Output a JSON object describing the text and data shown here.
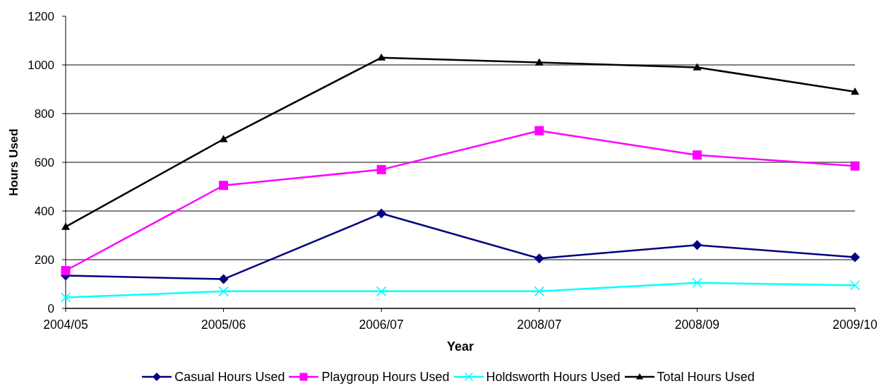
{
  "chart_data": {
    "type": "line",
    "xlabel": "Year",
    "ylabel": "Hours Used",
    "categories": [
      "2004/05",
      "2005/06",
      "2006/07",
      "2008/07",
      "2008/09",
      "2009/10"
    ],
    "series": [
      {
        "name": "Casual Hours Used",
        "color": "#000080",
        "marker": "diamond",
        "values": [
          135,
          120,
          390,
          205,
          260,
          210
        ]
      },
      {
        "name": "Playgroup Hours Used",
        "color": "#ff00ff",
        "marker": "square",
        "values": [
          155,
          505,
          570,
          730,
          630,
          585
        ]
      },
      {
        "name": "Holdsworth Hours Used",
        "color": "#00ffff",
        "marker": "cross",
        "values": [
          45,
          70,
          70,
          70,
          105,
          95
        ]
      },
      {
        "name": "Total Hours Used",
        "color": "#000000",
        "marker": "triangle",
        "values": [
          335,
          695,
          1030,
          1010,
          990,
          890
        ]
      }
    ],
    "ylim": [
      0,
      1200
    ],
    "yticks": [
      0,
      200,
      400,
      600,
      800,
      1000,
      1200
    ],
    "grid": "y",
    "legend": "bottom",
    "line_style": "solid"
  }
}
